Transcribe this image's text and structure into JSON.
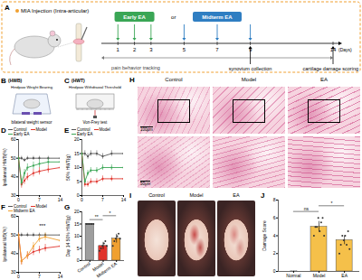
{
  "panels": {
    "A": {
      "letter": "A",
      "injection": "MIA Injection (Intra-articular)",
      "early": {
        "label": "Early EA",
        "days": [
          1,
          2,
          3
        ]
      },
      "or": "or",
      "midterm": {
        "label": "Midterm EA",
        "days": [
          5,
          7,
          9
        ]
      },
      "xlim": [
        0,
        14
      ],
      "days": [
        1,
        2,
        3,
        5,
        7,
        9,
        14
      ],
      "unit": "(Days)",
      "events": [
        {
          "day": 9,
          "label": "synovium collection"
        },
        {
          "day": 14,
          "label": "cartilage damage scoring"
        }
      ],
      "tracking": "pain behavior tracking"
    },
    "B": {
      "letter": "B",
      "abbr": "(HWB)",
      "title": "Hindpaw Weight Bearing",
      "caption": "bilateral weight sensor"
    },
    "C": {
      "letter": "C",
      "abbr": "(HWT)",
      "title": "Hindpaw Withdrawal Threshold",
      "caption": "Von-Frey test"
    },
    "H": {
      "letter": "H",
      "columns": [
        "Control",
        "Model",
        "EA"
      ],
      "scale_bars": [
        "100μm",
        "50μm"
      ]
    },
    "I": {
      "letter": "I",
      "columns": [
        "Control",
        "Model",
        "EA"
      ]
    }
  },
  "chart_data": [
    {
      "panel": "D",
      "type": "line",
      "ylabel": "Ipsilateral HWB(%)",
      "x": [
        0,
        1,
        2,
        3,
        5,
        7,
        10,
        14
      ],
      "xlim": [
        0,
        14
      ],
      "xticks": [
        0,
        7,
        14
      ],
      "ylim": [
        30,
        60
      ],
      "yticks": [
        30,
        40,
        50,
        60
      ],
      "series": [
        {
          "name": "Control",
          "color": "#555555",
          "values": [
            50,
            50,
            49,
            50,
            50,
            50,
            50,
            50
          ],
          "errors": [
            1,
            1,
            1,
            1,
            1,
            1,
            1,
            1
          ]
        },
        {
          "name": "Model",
          "color": "#e0342c",
          "values": [
            50,
            36,
            38,
            40,
            42,
            43,
            44,
            45
          ],
          "errors": [
            1,
            2,
            2,
            2,
            2,
            2,
            2,
            2
          ]
        },
        {
          "name": "Early EA",
          "color": "#3aa655",
          "values": [
            50,
            37,
            42,
            45,
            46,
            47,
            48,
            48
          ],
          "errors": [
            1,
            2,
            2,
            2,
            2,
            2,
            2,
            2
          ]
        }
      ]
    },
    {
      "panel": "E",
      "type": "line",
      "ylabel": "50% HWT(g)",
      "x": [
        0,
        1,
        2,
        3,
        5,
        7,
        10,
        14
      ],
      "xlim": [
        0,
        14
      ],
      "xticks": [
        0,
        7,
        14
      ],
      "ylim": [
        0,
        20
      ],
      "yticks": [
        0,
        5,
        10,
        15,
        20
      ],
      "series": [
        {
          "name": "Control",
          "color": "#555555",
          "values": [
            15,
            15,
            14,
            15,
            15,
            14,
            15,
            15
          ],
          "errors": [
            1,
            1,
            1,
            1,
            1,
            1,
            1,
            1
          ]
        },
        {
          "name": "Model",
          "color": "#e0342c",
          "values": [
            15,
            4,
            4,
            5,
            5,
            6,
            6,
            6
          ],
          "errors": [
            1,
            1,
            1,
            1,
            1,
            1,
            1,
            1
          ]
        },
        {
          "name": "Early EA",
          "color": "#3aa655",
          "values": [
            15,
            5,
            8,
            9,
            9,
            10,
            10,
            10
          ],
          "errors": [
            1,
            1,
            1,
            1,
            1,
            1,
            1,
            1
          ]
        }
      ]
    },
    {
      "panel": "F",
      "type": "line",
      "ylabel": "Ipsilateral WB(%)",
      "x": [
        0,
        1,
        3,
        5,
        7,
        9,
        14
      ],
      "xlim": [
        0,
        14
      ],
      "xticks": [
        0,
        7,
        14
      ],
      "ylim": [
        30,
        60
      ],
      "yticks": [
        30,
        40,
        50,
        60
      ],
      "series": [
        {
          "name": "Control",
          "color": "#555555",
          "values": [
            50,
            50,
            50,
            50,
            50,
            50,
            50
          ],
          "errors": [
            1,
            1,
            1,
            1,
            1,
            1,
            1
          ]
        },
        {
          "name": "Model",
          "color": "#e0342c",
          "values": [
            50,
            36,
            39,
            41,
            42,
            43,
            44
          ],
          "errors": [
            1,
            2,
            2,
            2,
            2,
            2,
            2
          ]
        },
        {
          "name": "Midterm EA",
          "color": "#f0a030",
          "values": [
            50,
            36,
            39,
            44,
            48,
            49,
            47
          ],
          "errors": [
            1,
            2,
            2,
            2,
            2,
            2,
            2
          ]
        }
      ],
      "annotations": [
        {
          "x": 8,
          "y": 55,
          "label": "***"
        }
      ]
    },
    {
      "panel": "G",
      "type": "bar",
      "ylabel": "Day 14 50% HWT(g)",
      "categories": [
        "Control",
        "Model",
        "Midterm EA"
      ],
      "values": [
        15,
        6,
        9
      ],
      "errors": [
        0,
        1.5,
        1.8
      ],
      "colors": [
        "#9e9e9e",
        "#e0342c",
        "#f0a030"
      ],
      "points": [
        [
          15,
          15,
          15,
          15,
          15,
          15
        ],
        [
          4,
          5,
          6,
          7,
          8,
          6
        ],
        [
          6,
          8,
          9,
          10,
          11,
          9
        ]
      ],
      "ylim": [
        0,
        20
      ],
      "yticks": [
        0,
        5,
        10,
        15,
        20
      ],
      "comparisons": [
        {
          "from": "Control",
          "to": "Model",
          "label": "**"
        },
        {
          "from": "Model",
          "to": "Midterm EA",
          "label": "*"
        }
      ]
    },
    {
      "panel": "J",
      "type": "bar",
      "ylabel": "Damage Score",
      "categories": [
        "Normal",
        "Model",
        "EA"
      ],
      "values": [
        0,
        5,
        3.5
      ],
      "errors": [
        0,
        0.6,
        0.5
      ],
      "colors": [
        "#f5c04a",
        "#f5c04a",
        "#f5c04a"
      ],
      "points": [
        [
          0,
          0,
          0,
          0,
          0
        ],
        [
          4,
          5,
          5,
          6,
          4.5,
          5.5,
          6,
          4
        ],
        [
          2,
          3,
          4,
          3.5,
          4,
          3,
          4.5,
          2.5
        ]
      ],
      "ylim": [
        0,
        8
      ],
      "yticks": [
        0,
        2,
        4,
        6,
        8
      ],
      "comparisons": [
        {
          "from": "Normal",
          "to": "Model",
          "label": "ns"
        },
        {
          "from": "Model",
          "to": "EA",
          "label": "*"
        }
      ]
    }
  ]
}
